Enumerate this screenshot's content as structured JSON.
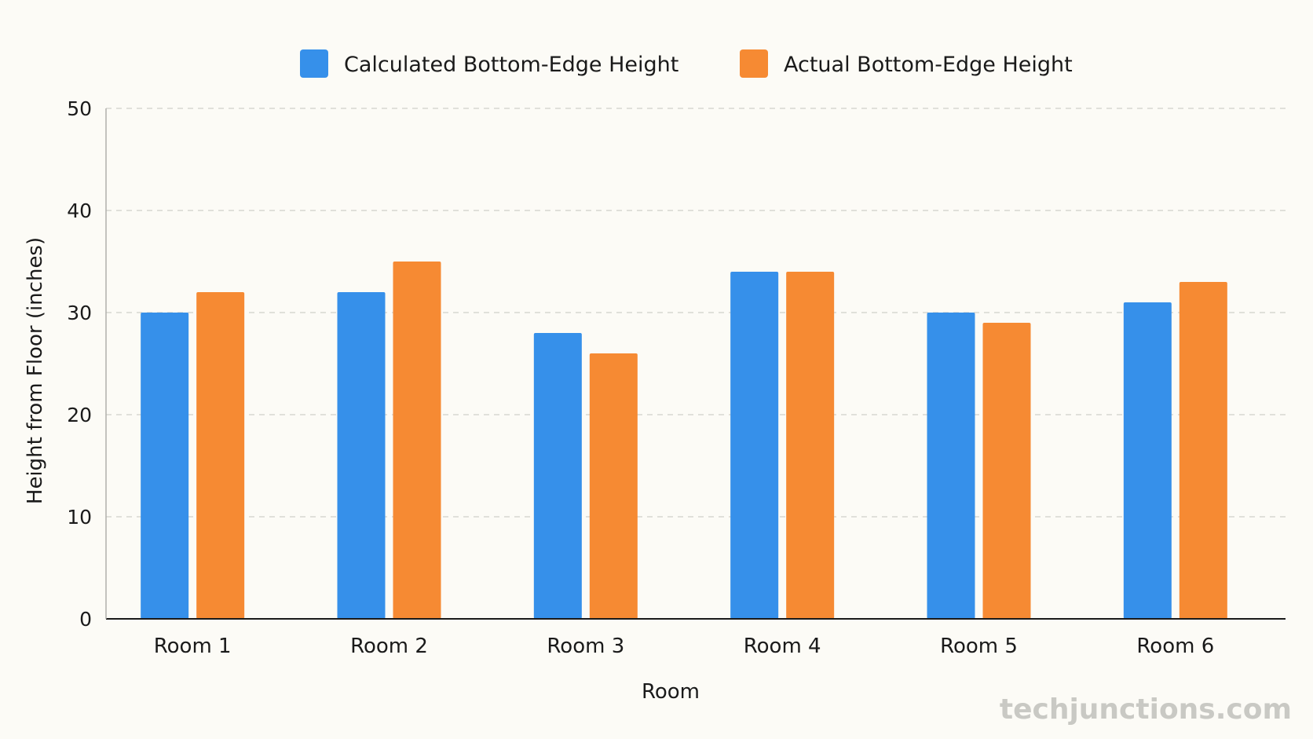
{
  "chart_data": {
    "type": "bar",
    "categories": [
      "Room 1",
      "Room 2",
      "Room 3",
      "Room 4",
      "Room 5",
      "Room 6"
    ],
    "series": [
      {
        "name": "Calculated Bottom-Edge Height",
        "color": "#3690ea",
        "values": [
          30,
          32,
          28,
          34,
          30,
          31
        ]
      },
      {
        "name": "Actual Bottom-Edge Height",
        "color": "#f68a33",
        "values": [
          32,
          35,
          26,
          34,
          29,
          33
        ]
      }
    ],
    "xlabel": "Room",
    "ylabel": "Height from Floor (inches)",
    "ylim": [
      0,
      50
    ],
    "yticks": [
      0,
      10,
      20,
      30,
      40,
      50
    ],
    "grid": true,
    "legend": "top-center"
  },
  "watermark": "techjunctions.com"
}
